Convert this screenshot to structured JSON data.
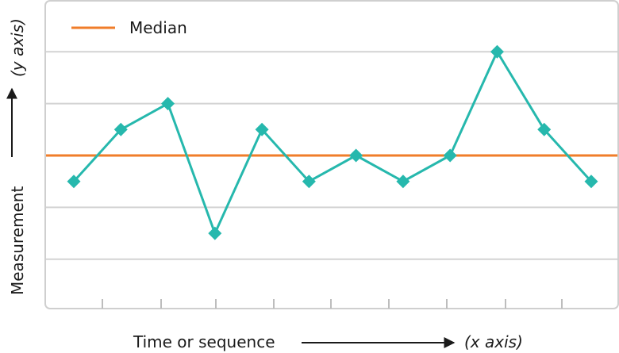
{
  "chart_data": {
    "type": "line",
    "title": "",
    "x": [
      1,
      2,
      3,
      4,
      5,
      6,
      7,
      8,
      9,
      10,
      11,
      12
    ],
    "series": [
      {
        "values": [
          -1,
          1,
          2,
          -3,
          1,
          -1,
          0,
          -1,
          0,
          4,
          1,
          -1
        ]
      }
    ],
    "median": {
      "label": "Median",
      "value": 0
    },
    "ylim": [
      -6,
      6
    ],
    "grid": true,
    "legend_position": "top-left",
    "xlabel": {
      "text": "Time or sequence",
      "tag": "(x axis)"
    },
    "ylabel": {
      "text": "Measurement",
      "tag": "(y axis)"
    },
    "colors": {
      "line": "#26b8ad",
      "median": "#f07d2a",
      "grid": "#d3d3d3",
      "frame": "#cfcfcf",
      "axis_arrow": "#1a1a1a"
    }
  }
}
